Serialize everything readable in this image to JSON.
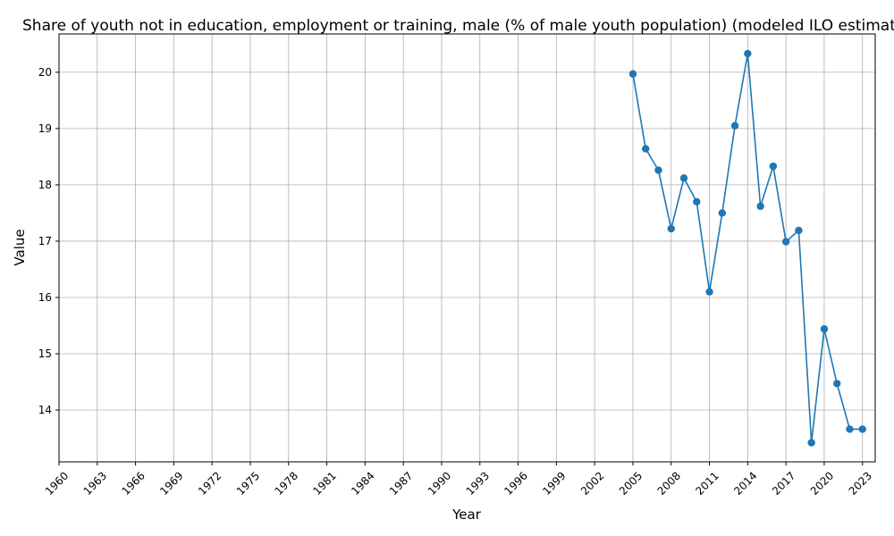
{
  "chart_data": {
    "type": "line",
    "title": "Share of youth not in education, employment or training, male (% of male youth population)  (modeled ILO estimate)",
    "xlabel": "Year",
    "ylabel": "Value",
    "grid": true,
    "xlim": [
      1960,
      2024
    ],
    "ylim": [
      13.08,
      20.68
    ],
    "x_ticks": [
      1960,
      1963,
      1966,
      1969,
      1972,
      1975,
      1978,
      1981,
      1984,
      1987,
      1990,
      1993,
      1996,
      1999,
      2002,
      2005,
      2008,
      2011,
      2014,
      2017,
      2020,
      2023
    ],
    "y_ticks": [
      14,
      15,
      16,
      17,
      18,
      19,
      20
    ],
    "color": "#1f77b4",
    "series": [
      {
        "x": [
          2005,
          2006,
          2007,
          2008,
          2009,
          2010,
          2011,
          2012,
          2013,
          2014,
          2015,
          2016,
          2017,
          2018,
          2019,
          2020,
          2021,
          2022,
          2023
        ],
        "values": [
          19.97,
          18.64,
          18.26,
          17.22,
          18.12,
          17.7,
          16.1,
          17.5,
          19.05,
          20.33,
          17.62,
          18.33,
          16.99,
          17.19,
          13.42,
          15.44,
          14.47,
          13.66,
          13.66
        ]
      }
    ]
  }
}
